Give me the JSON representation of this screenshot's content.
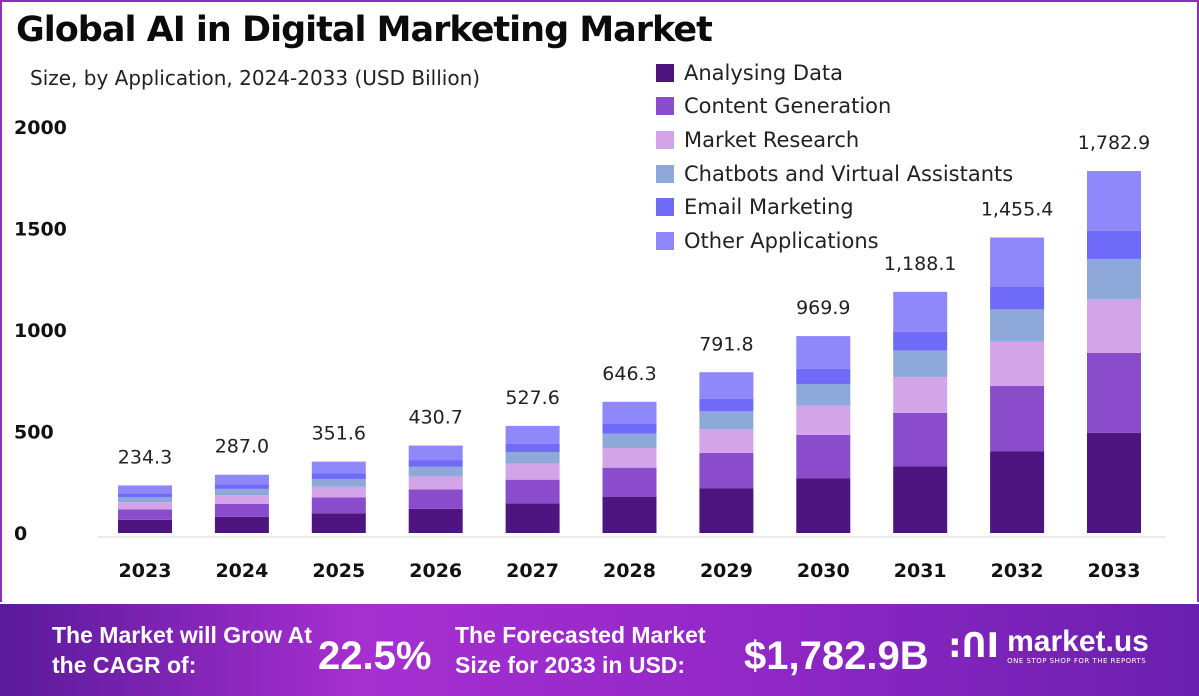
{
  "chart_data": {
    "type": "bar",
    "stacked": true,
    "title": "Global AI in Digital Marketing Market",
    "subtitle": "Size, by Application, 2024-2033 (USD Billion)",
    "xlabel": "",
    "ylabel": "",
    "ylim": [
      0,
      2000
    ],
    "yticks": [
      "0",
      "500",
      "1000",
      "1500",
      "2000"
    ],
    "grid": false,
    "legend_position": "top-right",
    "categories": [
      "2023",
      "2024",
      "2025",
      "2026",
      "2027",
      "2028",
      "2029",
      "2030",
      "2031",
      "2032",
      "2033"
    ],
    "totals": [
      234.3,
      287.0,
      351.6,
      430.7,
      527.6,
      646.3,
      791.8,
      969.9,
      1188.1,
      1455.4,
      1782.9
    ],
    "total_labels": [
      "234.3",
      "287.0",
      "351.6",
      "430.7",
      "527.6",
      "646.3",
      "791.8",
      "969.9",
      "1,188.1",
      "1,455.4",
      "1,782.9"
    ],
    "series": [
      {
        "name": "Analysing Data",
        "color": "#4e1581",
        "values": [
          64.9,
          79.5,
          97.4,
          119.3,
          146.1,
          179.0,
          219.3,
          268.7,
          329.1,
          403.1,
          493.0
        ]
      },
      {
        "name": "Content Generation",
        "color": "#8a4ccb",
        "values": [
          51.8,
          63.4,
          77.7,
          95.2,
          116.6,
          142.8,
          175.0,
          214.3,
          262.6,
          321.6,
          394.0
        ]
      },
      {
        "name": "Market Research",
        "color": "#d4a4e8",
        "values": [
          34.9,
          42.8,
          52.4,
          64.2,
          78.6,
          96.3,
          118.0,
          144.5,
          177.0,
          216.9,
          266.0
        ]
      },
      {
        "name": "Chatbots and Virtual Assistants",
        "color": "#8ea8d9",
        "values": [
          25.8,
          31.6,
          38.7,
          47.4,
          58.0,
          71.1,
          87.1,
          106.7,
          130.7,
          160.1,
          197.0
        ]
      },
      {
        "name": "Email Marketing",
        "color": "#6f6af8",
        "values": [
          18.0,
          22.1,
          27.1,
          33.2,
          40.6,
          49.8,
          61.0,
          74.7,
          91.5,
          112.1,
          138.0
        ]
      },
      {
        "name": "Other Applications",
        "color": "#8e88fb",
        "values": [
          38.9,
          47.6,
          58.3,
          71.4,
          87.7,
          107.3,
          131.4,
          161.0,
          197.2,
          241.6,
          294.9
        ]
      }
    ]
  },
  "banner": {
    "cagr_label": "The Market will Grow At the CAGR of:",
    "cagr_value": "22.5%",
    "forecast_label": "The Forecasted Market Size for 2033 in USD:",
    "forecast_value": "$1,782.9B",
    "brand": "market.us",
    "brand_tagline": "ONE STOP SHOP FOR THE REPORTS"
  }
}
